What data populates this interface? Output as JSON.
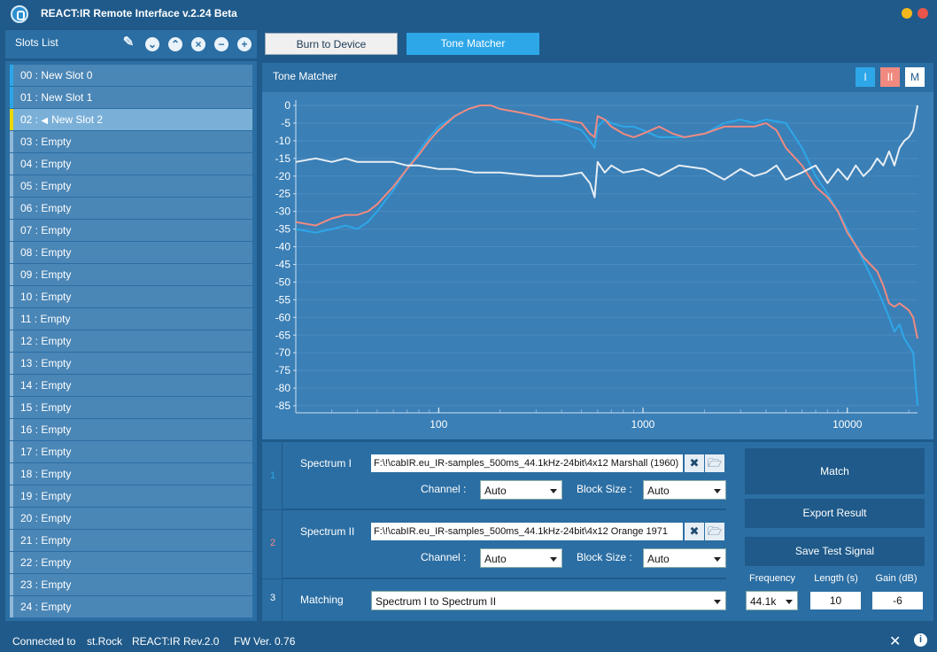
{
  "app": {
    "title": "REACT:IR Remote Interface v.2.24 Beta",
    "accent": "#2ea7e8",
    "background": "#1f5a8a",
    "panel": "#2b6ea3"
  },
  "window_controls": [
    {
      "name": "minimize",
      "color": "#f5b81c"
    },
    {
      "name": "close",
      "color": "#e8554a"
    }
  ],
  "slots_panel": {
    "title": "Slots List",
    "icons": [
      "pencil-icon",
      "move-down-icon",
      "move-up-icon",
      "clear-icon",
      "remove-icon",
      "add-icon"
    ]
  },
  "slots": [
    {
      "num": "00 :",
      "name": "New Slot 0",
      "state": "used"
    },
    {
      "num": "01 :",
      "name": "New Slot 1",
      "state": "used"
    },
    {
      "num": "02 :",
      "name": "New Slot 2",
      "state": "active"
    },
    {
      "num": "03 :",
      "name": "Empty",
      "state": "empty"
    },
    {
      "num": "04 :",
      "name": "Empty",
      "state": "empty"
    },
    {
      "num": "05 :",
      "name": "Empty",
      "state": "empty"
    },
    {
      "num": "06 :",
      "name": "Empty",
      "state": "empty"
    },
    {
      "num": "07 :",
      "name": "Empty",
      "state": "empty"
    },
    {
      "num": "08 :",
      "name": "Empty",
      "state": "empty"
    },
    {
      "num": "09 :",
      "name": "Empty",
      "state": "empty"
    },
    {
      "num": "10 :",
      "name": "Empty",
      "state": "empty"
    },
    {
      "num": "11 :",
      "name": "Empty",
      "state": "empty"
    },
    {
      "num": "12 :",
      "name": "Empty",
      "state": "empty"
    },
    {
      "num": "13 :",
      "name": "Empty",
      "state": "empty"
    },
    {
      "num": "14 :",
      "name": "Empty",
      "state": "empty"
    },
    {
      "num": "15 :",
      "name": "Empty",
      "state": "empty"
    },
    {
      "num": "16 :",
      "name": "Empty",
      "state": "empty"
    },
    {
      "num": "17 :",
      "name": "Empty",
      "state": "empty"
    },
    {
      "num": "18 :",
      "name": "Empty",
      "state": "empty"
    },
    {
      "num": "19 :",
      "name": "Empty",
      "state": "empty"
    },
    {
      "num": "20 :",
      "name": "Empty",
      "state": "empty"
    },
    {
      "num": "21 :",
      "name": "Empty",
      "state": "empty"
    },
    {
      "num": "22 :",
      "name": "Empty",
      "state": "empty"
    },
    {
      "num": "23 :",
      "name": "Empty",
      "state": "empty"
    },
    {
      "num": "24 :",
      "name": "Empty",
      "state": "empty"
    }
  ],
  "toolbar": {
    "burn_label": "Burn to Device",
    "tone_label": "Tone Matcher"
  },
  "tone_matcher": {
    "title": "Tone Matcher",
    "channel_buttons": [
      {
        "label": "I",
        "bg": "#2ea7e8",
        "fg": "#ffffff"
      },
      {
        "label": "II",
        "bg": "#f08a80",
        "fg": "#ffffff"
      },
      {
        "label": "M",
        "bg": "#ffffff",
        "fg": "#1f5a8a"
      }
    ]
  },
  "chart_data": {
    "type": "line",
    "x_scale": "log",
    "xlim": [
      20,
      22050
    ],
    "ylim": [
      -87,
      0
    ],
    "yticks": [
      0,
      -5,
      -10,
      -15,
      -20,
      -25,
      -30,
      -35,
      -40,
      -45,
      -50,
      -55,
      -60,
      -65,
      -70,
      -75,
      -80,
      -85
    ],
    "xticks": [
      100,
      1000,
      10000
    ],
    "xtick_labels": [
      "100",
      "1000",
      "10000"
    ],
    "series": [
      {
        "color": "#2ea7e8",
        "points": [
          [
            20,
            -35
          ],
          [
            25,
            -36
          ],
          [
            30,
            -35
          ],
          [
            35,
            -34
          ],
          [
            40,
            -35
          ],
          [
            45,
            -33
          ],
          [
            50,
            -30
          ],
          [
            60,
            -24
          ],
          [
            70,
            -18
          ],
          [
            80,
            -13
          ],
          [
            90,
            -9
          ],
          [
            100,
            -6
          ],
          [
            120,
            -3
          ],
          [
            140,
            -1
          ],
          [
            160,
            0
          ],
          [
            180,
            0
          ],
          [
            200,
            -1
          ],
          [
            250,
            -2
          ],
          [
            300,
            -3
          ],
          [
            350,
            -4
          ],
          [
            400,
            -5
          ],
          [
            500,
            -7
          ],
          [
            550,
            -10
          ],
          [
            580,
            -12
          ],
          [
            600,
            -6
          ],
          [
            650,
            -4
          ],
          [
            700,
            -5
          ],
          [
            800,
            -6
          ],
          [
            900,
            -6
          ],
          [
            1000,
            -7
          ],
          [
            1200,
            -9
          ],
          [
            1400,
            -9
          ],
          [
            1600,
            -9
          ],
          [
            2000,
            -8
          ],
          [
            2500,
            -5
          ],
          [
            3000,
            -4
          ],
          [
            3500,
            -5
          ],
          [
            4000,
            -4
          ],
          [
            5000,
            -5
          ],
          [
            6000,
            -12
          ],
          [
            7000,
            -20
          ],
          [
            8000,
            -25
          ],
          [
            9000,
            -30
          ],
          [
            10000,
            -35
          ],
          [
            12000,
            -44
          ],
          [
            14000,
            -52
          ],
          [
            15000,
            -56
          ],
          [
            16000,
            -60
          ],
          [
            17000,
            -64
          ],
          [
            18000,
            -62
          ],
          [
            19000,
            -66
          ],
          [
            20000,
            -68
          ],
          [
            21000,
            -70
          ],
          [
            22050,
            -85
          ]
        ]
      },
      {
        "color": "#f08a80",
        "points": [
          [
            20,
            -33
          ],
          [
            25,
            -34
          ],
          [
            30,
            -32
          ],
          [
            35,
            -31
          ],
          [
            40,
            -31
          ],
          [
            45,
            -30
          ],
          [
            50,
            -28
          ],
          [
            60,
            -23
          ],
          [
            70,
            -18
          ],
          [
            80,
            -14
          ],
          [
            90,
            -10
          ],
          [
            100,
            -7
          ],
          [
            120,
            -3
          ],
          [
            140,
            -1
          ],
          [
            160,
            0
          ],
          [
            180,
            0
          ],
          [
            200,
            -1
          ],
          [
            250,
            -2
          ],
          [
            300,
            -3
          ],
          [
            350,
            -4
          ],
          [
            400,
            -4
          ],
          [
            500,
            -5
          ],
          [
            550,
            -8
          ],
          [
            580,
            -9
          ],
          [
            600,
            -3
          ],
          [
            650,
            -4
          ],
          [
            700,
            -6
          ],
          [
            800,
            -8
          ],
          [
            900,
            -9
          ],
          [
            1000,
            -8
          ],
          [
            1200,
            -6
          ],
          [
            1400,
            -8
          ],
          [
            1600,
            -9
          ],
          [
            2000,
            -8
          ],
          [
            2500,
            -6
          ],
          [
            3000,
            -6
          ],
          [
            3500,
            -6
          ],
          [
            4000,
            -5
          ],
          [
            4500,
            -7
          ],
          [
            5000,
            -12
          ],
          [
            6000,
            -17
          ],
          [
            7000,
            -23
          ],
          [
            8000,
            -26
          ],
          [
            9000,
            -30
          ],
          [
            10000,
            -36
          ],
          [
            12000,
            -43
          ],
          [
            14000,
            -47
          ],
          [
            15000,
            -51
          ],
          [
            16000,
            -56
          ],
          [
            17000,
            -57
          ],
          [
            18000,
            -56
          ],
          [
            19000,
            -57
          ],
          [
            20000,
            -58
          ],
          [
            21000,
            -60
          ],
          [
            22050,
            -66
          ]
        ]
      },
      {
        "color": "#e8eef4",
        "points": [
          [
            20,
            -16
          ],
          [
            25,
            -15
          ],
          [
            30,
            -16
          ],
          [
            35,
            -15
          ],
          [
            40,
            -16
          ],
          [
            50,
            -16
          ],
          [
            60,
            -16
          ],
          [
            70,
            -17
          ],
          [
            80,
            -17
          ],
          [
            100,
            -18
          ],
          [
            120,
            -18
          ],
          [
            150,
            -19
          ],
          [
            200,
            -19
          ],
          [
            300,
            -20
          ],
          [
            400,
            -20
          ],
          [
            500,
            -19
          ],
          [
            550,
            -22
          ],
          [
            580,
            -26
          ],
          [
            600,
            -16
          ],
          [
            650,
            -19
          ],
          [
            700,
            -17
          ],
          [
            800,
            -19
          ],
          [
            1000,
            -18
          ],
          [
            1200,
            -20
          ],
          [
            1500,
            -17
          ],
          [
            2000,
            -18
          ],
          [
            2500,
            -21
          ],
          [
            3000,
            -18
          ],
          [
            3500,
            -20
          ],
          [
            4000,
            -19
          ],
          [
            4500,
            -17
          ],
          [
            5000,
            -21
          ],
          [
            6000,
            -19
          ],
          [
            7000,
            -17
          ],
          [
            8000,
            -22
          ],
          [
            9000,
            -18
          ],
          [
            10000,
            -21
          ],
          [
            11000,
            -17
          ],
          [
            12000,
            -20
          ],
          [
            13000,
            -18
          ],
          [
            14000,
            -15
          ],
          [
            15000,
            -17
          ],
          [
            16000,
            -13
          ],
          [
            17000,
            -17
          ],
          [
            18000,
            -12
          ],
          [
            19000,
            -10
          ],
          [
            20000,
            -9
          ],
          [
            21000,
            -7
          ],
          [
            22050,
            0
          ]
        ]
      }
    ]
  },
  "spectrum1": {
    "index": "1",
    "label": "Spectrum I",
    "path": "F:\\!\\cabIR.eu_IR-samples_500ms_44.1kHz-24bit\\4x12 Marshall (1960)",
    "channel_label": "Channel :",
    "channel_value": "Auto",
    "block_label": "Block Size :",
    "block_value": "Auto",
    "index_color": "#2ea7e8"
  },
  "spectrum2": {
    "index": "2",
    "label": "Spectrum II",
    "path": "F:\\!\\cabIR.eu_IR-samples_500ms_44.1kHz-24bit\\4x12 Orange 1971",
    "channel_label": "Channel :",
    "channel_value": "Auto",
    "block_label": "Block Size :",
    "block_value": "Auto",
    "index_color": "#f08a80"
  },
  "matching": {
    "index": "3",
    "label": "Matching",
    "value": "Spectrum I to Spectrum II"
  },
  "actions": {
    "match_label": "Match",
    "export_label": "Export Result",
    "save_test_label": "Save Test Signal",
    "frequency_label": "Frequency",
    "frequency_value": "44.1k",
    "length_label": "Length (s)",
    "length_value": "10",
    "gain_label": "Gain (dB)",
    "gain_value": "-6"
  },
  "status": {
    "connected_label": "Connected to",
    "device": "st.Rock",
    "rev": "REACT:IR Rev.2.0",
    "fw": "FW Ver. 0.76"
  }
}
